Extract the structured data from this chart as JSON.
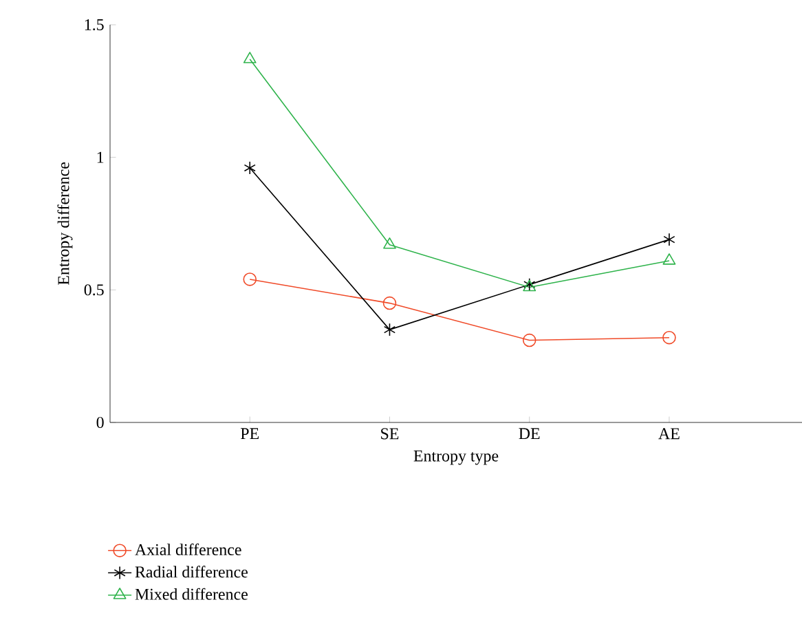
{
  "chart_data": {
    "type": "line",
    "xlabel": "Entropy type",
    "ylabel": "Entropy difference",
    "categories": [
      "PE",
      "SE",
      "DE",
      "AE"
    ],
    "ylim": [
      0,
      1.5
    ],
    "yticks": [
      0,
      0.5,
      1,
      1.5
    ],
    "legend": "bottom",
    "series": [
      {
        "name": "Axial difference",
        "color": "#f04a28",
        "marker": "circle",
        "values": [
          0.54,
          0.45,
          0.31,
          0.32
        ]
      },
      {
        "name": "Radial difference",
        "color": "#000000",
        "marker": "cross",
        "values": [
          0.96,
          0.35,
          0.52,
          0.69
        ]
      },
      {
        "name": "Mixed difference",
        "color": "#2eb34b",
        "marker": "triangle",
        "values": [
          1.37,
          0.67,
          0.51,
          0.61
        ]
      }
    ]
  }
}
